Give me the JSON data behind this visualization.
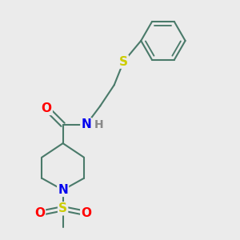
{
  "background_color": "#ebebeb",
  "bond_color": "#4a7a6a",
  "atom_colors": {
    "O": "#ff0000",
    "N": "#0000ee",
    "S": "#cccc00",
    "H": "#888888"
  },
  "line_width": 1.5,
  "figsize": [
    3.0,
    3.0
  ],
  "dpi": 100
}
